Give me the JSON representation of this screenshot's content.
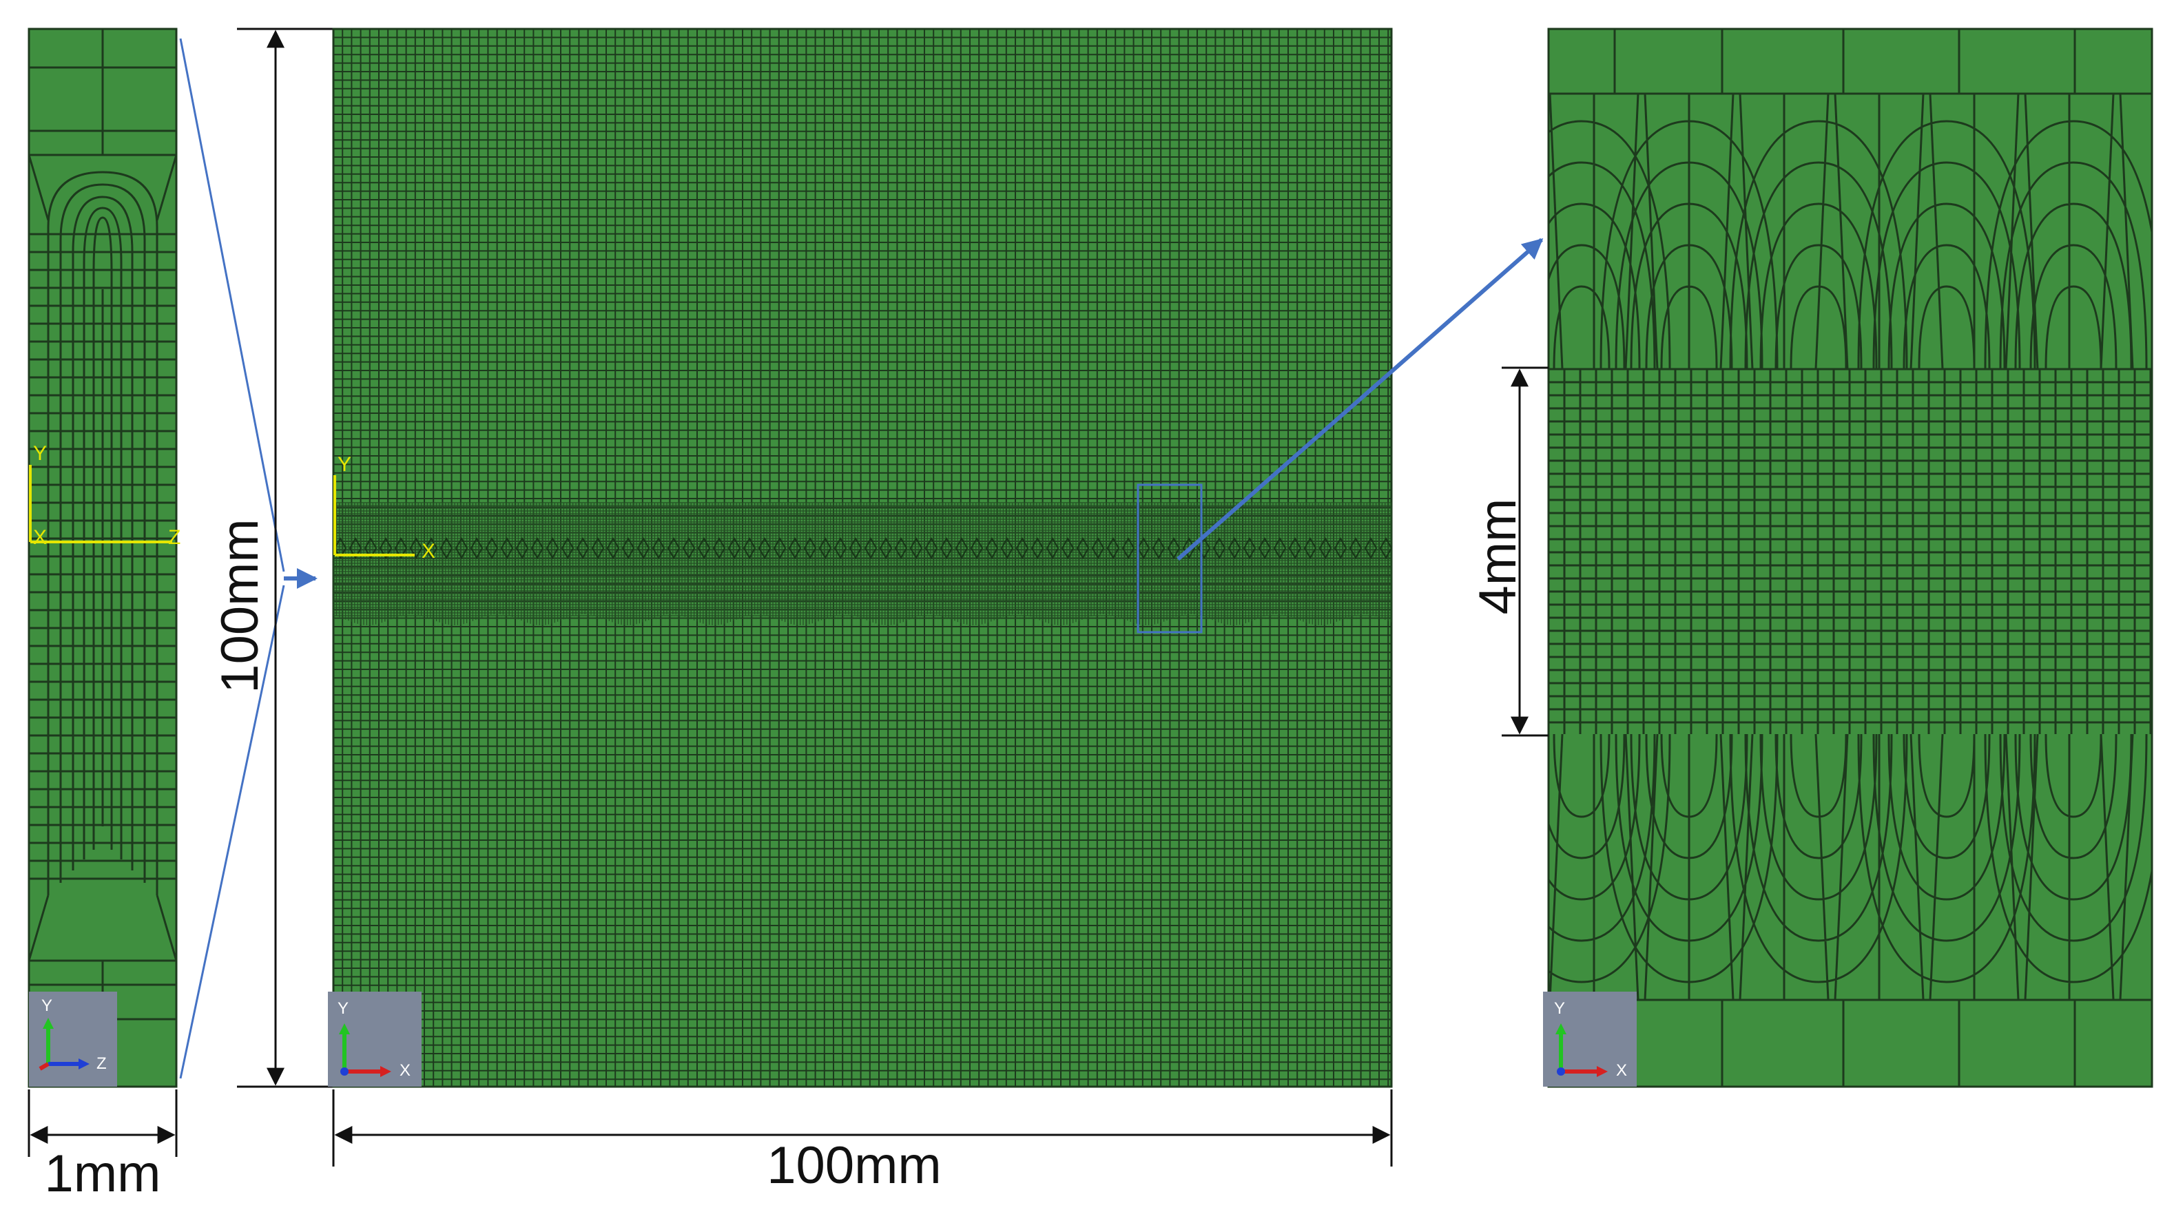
{
  "colors": {
    "mesh_fill": "#3f8f3f",
    "mesh_line": "#1d3a1d",
    "dense_line": "#234d23",
    "leader_blue": "#4472c4",
    "axis_yellow": "#e6e600",
    "triad_bg": "#7d879a"
  },
  "dimensions": {
    "thickness": "1mm",
    "height": "100mm",
    "width": "100mm",
    "zoom_height": "4mm"
  },
  "views": {
    "side": {
      "axis_labels": {
        "y": "Y",
        "x": "X",
        "z": "Z"
      },
      "triad": {
        "up": "Y",
        "right": "Z"
      }
    },
    "plate": {
      "axis_labels": {
        "y": "Y",
        "x": "X"
      },
      "triad": {
        "up": "Y",
        "right": "X"
      }
    },
    "zoom": {
      "triad": {
        "up": "Y",
        "right": "X"
      }
    }
  },
  "icons": [
    "coordinate-triad-icon",
    "axis-origin-icon",
    "zoom-region-box"
  ]
}
